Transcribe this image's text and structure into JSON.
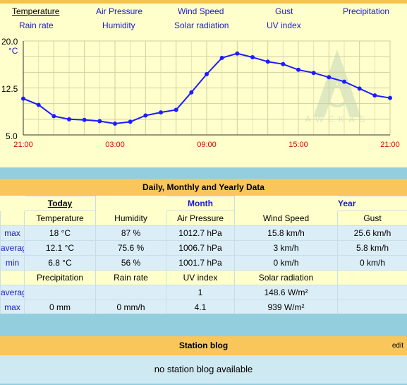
{
  "tabs": [
    {
      "label": "Temperature",
      "active": true
    },
    {
      "label": "Air Pressure",
      "active": false
    },
    {
      "label": "Wind Speed",
      "active": false
    },
    {
      "label": "Gust",
      "active": false
    },
    {
      "label": "Precipitation",
      "active": false
    },
    {
      "label": "Rain rate",
      "active": false
    },
    {
      "label": "Humidity",
      "active": false
    },
    {
      "label": "Solar radiation",
      "active": false
    },
    {
      "label": "UV index",
      "active": false
    }
  ],
  "chart_data": {
    "type": "line",
    "unit": "°C",
    "ylim": [
      5.0,
      20.0
    ],
    "yticks": [
      "20.0",
      "12.5",
      "5.0"
    ],
    "xticks": [
      "21:00",
      "03:00",
      "09:00",
      "15:00",
      "21:00"
    ],
    "watermark": "AWEKAS",
    "series": [
      {
        "color": "#1c1cff",
        "values": [
          10.8,
          9.8,
          8.0,
          7.5,
          7.4,
          7.2,
          6.8,
          7.1,
          8.1,
          8.6,
          9.0,
          11.8,
          14.7,
          17.3,
          18.0,
          17.4,
          16.7,
          16.3,
          15.4,
          14.9,
          14.2,
          13.5,
          12.4,
          11.3,
          10.9
        ]
      }
    ]
  },
  "summary": {
    "title": "Daily, Monthly and Yearly Data",
    "periods": {
      "today": "Today",
      "month": "Month",
      "year": "Year"
    },
    "headers1": [
      "Temperature",
      "Humidity",
      "Air Pressure",
      "Wind Speed",
      "Gust"
    ],
    "rows1": [
      {
        "label": "max",
        "cells": [
          "18 °C",
          "87 %",
          "1012.7 hPa",
          "15.8 km/h",
          "25.6 km/h"
        ]
      },
      {
        "label": "average",
        "cells": [
          "12.1 °C",
          "75.6 %",
          "1006.7 hPa",
          "3 km/h",
          "5.8 km/h"
        ]
      },
      {
        "label": "min",
        "cells": [
          "6.8 °C",
          "56 %",
          "1001.7 hPa",
          "0 km/h",
          "0 km/h"
        ]
      }
    ],
    "headers2": [
      "Precipitation",
      "Rain rate",
      "UV index",
      "Solar radiation",
      ""
    ],
    "rows2": [
      {
        "label": "average",
        "cells": [
          "",
          "",
          "1",
          "148.6 W/m²",
          ""
        ]
      },
      {
        "label": "max",
        "cells": [
          "0 mm",
          "0 mm/h",
          "4.1",
          "939 W/m²",
          ""
        ]
      }
    ]
  },
  "blog": {
    "title": "Station blog",
    "edit": "edit",
    "message": "no station blog available"
  }
}
